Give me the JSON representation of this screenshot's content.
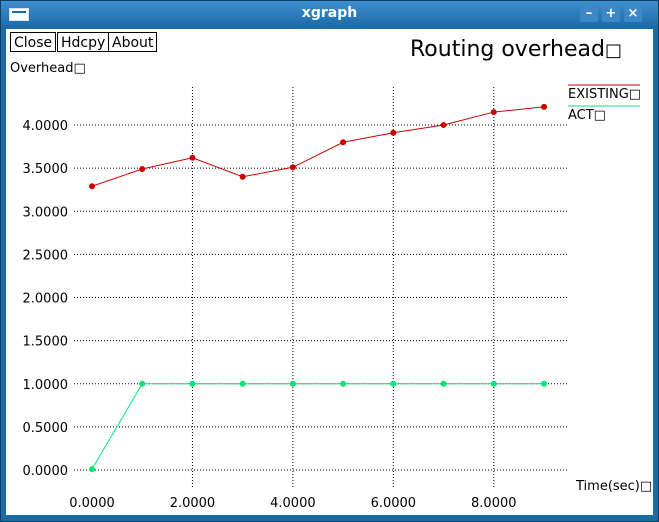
{
  "window": {
    "title": "xgraph",
    "buttons": [
      "Close",
      "Hdcpy",
      "About"
    ]
  },
  "colors": {
    "existing": "#cc0000",
    "act": "#00e676",
    "grid": "#000000"
  },
  "chart_data": {
    "type": "line",
    "title": "Routing overhead",
    "ylabel": "Overhead",
    "xlabel": "Time(sec)",
    "xlim": [
      0,
      9
    ],
    "ylim": [
      0,
      4
    ],
    "x_ticks": [
      "0.0000",
      "2.0000",
      "4.0000",
      "6.0000",
      "8.0000"
    ],
    "x_tick_values": [
      0,
      2,
      4,
      6,
      8
    ],
    "y_ticks": [
      "0.0000",
      "0.5000",
      "1.0000",
      "1.5000",
      "2.0000",
      "2.5000",
      "3.0000",
      "3.5000",
      "4.0000"
    ],
    "y_tick_values": [
      0,
      0.5,
      1,
      1.5,
      2,
      2.5,
      3,
      3.5,
      4
    ],
    "grid": true,
    "legend": "right",
    "x": [
      0,
      1,
      2,
      3,
      4,
      5,
      6,
      7,
      8,
      9
    ],
    "series": [
      {
        "name": "EXISTING",
        "color": "#cc0000",
        "values": [
          3.29,
          3.49,
          3.62,
          3.4,
          3.51,
          3.8,
          3.91,
          4.0,
          4.15,
          4.21
        ]
      },
      {
        "name": "ACT",
        "color": "#00e676",
        "x": [
          0,
          1,
          2,
          3,
          4,
          5,
          6,
          7,
          8,
          9
        ],
        "values": [
          0.01,
          1.0,
          1.0,
          1.0,
          1.0,
          1.0,
          1.0,
          1.0,
          1.0,
          1.0
        ]
      }
    ]
  }
}
